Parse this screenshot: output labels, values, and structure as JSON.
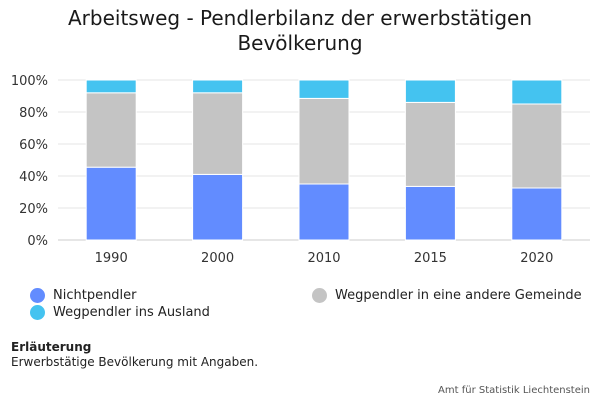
{
  "chart_data": {
    "type": "bar",
    "stacked": true,
    "title": "Arbeitsweg - Pendlerbilanz der erwerbstätigen Bevölkerung",
    "categories": [
      "1990",
      "2000",
      "2010",
      "2015",
      "2020"
    ],
    "ylim": [
      0,
      100
    ],
    "y_ticks": [
      "0%",
      "20%",
      "40%",
      "60%",
      "80%",
      "100%"
    ],
    "y_tick_values": [
      0,
      20,
      40,
      60,
      80,
      100
    ],
    "grid": true,
    "legend_position": "bottom",
    "series": [
      {
        "name": "Nichtpendler",
        "color": "#628cff",
        "values": [
          45.5,
          41,
          35,
          33.5,
          32.5
        ]
      },
      {
        "name": "Wegpendler in eine andere Gemeinde",
        "color": "#c4c4c4",
        "values": [
          46.5,
          51,
          53.5,
          52.5,
          52.5
        ]
      },
      {
        "name": "Wegpendler ins Ausland",
        "color": "#44c3f0",
        "values": [
          8,
          8,
          11.5,
          14,
          15
        ]
      }
    ]
  },
  "note": {
    "heading": "Erläuterung",
    "text": "Erwerbstätige Bevölkerung mit Angaben."
  },
  "source": "Amt für Statistik Liechtenstein"
}
